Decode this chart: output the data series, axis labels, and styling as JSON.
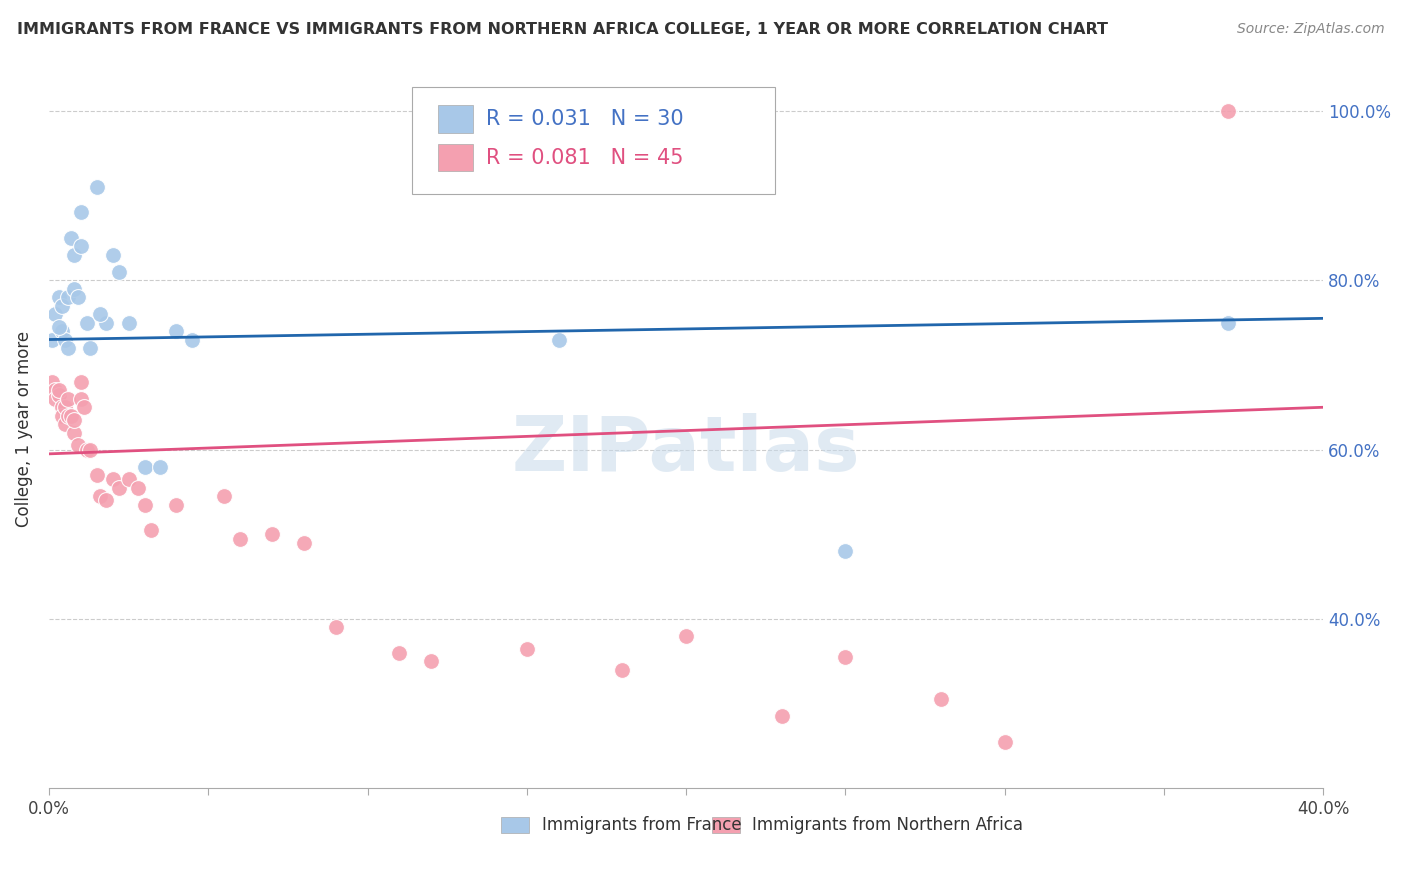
{
  "title": "IMMIGRANTS FROM FRANCE VS IMMIGRANTS FROM NORTHERN AFRICA COLLEGE, 1 YEAR OR MORE CORRELATION CHART",
  "source": "Source: ZipAtlas.com",
  "ylabel": "College, 1 year or more",
  "legend_label1": "Immigrants from France",
  "legend_label2": "Immigrants from Northern Africa",
  "R1": "0.031",
  "N1": "30",
  "R2": "0.081",
  "N2": "45",
  "color_france": "#a8c8e8",
  "color_nafrica": "#f4a0b0",
  "color_france_line": "#2166ac",
  "color_nafrica_line": "#e05080",
  "watermark": "ZIPatlas",
  "xlim": [
    0.0,
    0.4
  ],
  "ylim": [
    0.2,
    1.05
  ],
  "yticks": [
    0.4,
    0.6,
    0.8,
    1.0
  ],
  "ytick_labels": [
    "40.0%",
    "60.0%",
    "80.0%",
    "100.0%"
  ],
  "france_x": [
    0.001,
    0.002,
    0.003,
    0.004,
    0.004,
    0.005,
    0.006,
    0.006,
    0.007,
    0.008,
    0.009,
    0.01,
    0.012,
    0.013,
    0.015,
    0.02,
    0.025,
    0.03,
    0.035,
    0.04,
    0.045,
    0.022,
    0.018,
    0.016,
    0.008,
    0.01,
    0.16,
    0.25,
    0.37,
    0.003
  ],
  "france_y": [
    0.73,
    0.76,
    0.78,
    0.74,
    0.77,
    0.73,
    0.72,
    0.78,
    0.85,
    0.79,
    0.78,
    0.88,
    0.75,
    0.72,
    0.91,
    0.83,
    0.75,
    0.58,
    0.58,
    0.74,
    0.73,
    0.81,
    0.75,
    0.76,
    0.83,
    0.84,
    0.73,
    0.48,
    0.75,
    0.745
  ],
  "nafrica_x": [
    0.001,
    0.002,
    0.002,
    0.003,
    0.003,
    0.004,
    0.004,
    0.005,
    0.005,
    0.006,
    0.006,
    0.007,
    0.008,
    0.009,
    0.01,
    0.01,
    0.012,
    0.013,
    0.015,
    0.016,
    0.018,
    0.02,
    0.022,
    0.025,
    0.028,
    0.03,
    0.032,
    0.04,
    0.055,
    0.06,
    0.07,
    0.08,
    0.09,
    0.11,
    0.12,
    0.15,
    0.18,
    0.2,
    0.23,
    0.25,
    0.28,
    0.3,
    0.37,
    0.008,
    0.011
  ],
  "nafrica_y": [
    0.68,
    0.67,
    0.66,
    0.665,
    0.67,
    0.65,
    0.64,
    0.65,
    0.63,
    0.66,
    0.64,
    0.64,
    0.62,
    0.605,
    0.66,
    0.68,
    0.6,
    0.6,
    0.57,
    0.545,
    0.54,
    0.565,
    0.555,
    0.565,
    0.555,
    0.535,
    0.505,
    0.535,
    0.545,
    0.495,
    0.5,
    0.49,
    0.39,
    0.36,
    0.35,
    0.365,
    0.34,
    0.38,
    0.285,
    0.355,
    0.305,
    0.255,
    1.0,
    0.635,
    0.65
  ],
  "france_trendline": [
    0.73,
    0.755
  ],
  "nafrica_trendline": [
    0.595,
    0.65
  ]
}
